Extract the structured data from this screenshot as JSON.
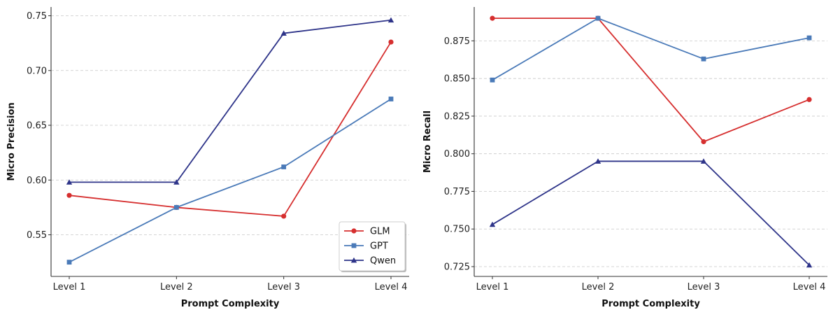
{
  "chart_data": [
    {
      "type": "line",
      "categories": [
        "Level 1",
        "Level 2",
        "Level 3",
        "Level 4"
      ],
      "xlabel": "Prompt Complexity",
      "ylabel": "Micro Precision",
      "ylim": [
        0.512,
        0.758
      ],
      "yticks": [
        0.55,
        0.6,
        0.65,
        0.7,
        0.75
      ],
      "ytick_labels": [
        "0.55",
        "0.60",
        "0.65",
        "0.70",
        "0.75"
      ],
      "grid": "horizontal dashed",
      "legend": "bottom-right",
      "series": [
        {
          "name": "GLM",
          "color": "#d62f2f",
          "marker": "circle",
          "values": [
            0.586,
            0.575,
            0.567,
            0.726
          ]
        },
        {
          "name": "GPT",
          "color": "#4a7ab8",
          "marker": "square",
          "values": [
            0.525,
            0.575,
            0.612,
            0.674
          ]
        },
        {
          "name": "Qwen",
          "color": "#2e3489",
          "marker": "triangle",
          "values": [
            0.598,
            0.598,
            0.734,
            0.746
          ]
        }
      ]
    },
    {
      "type": "line",
      "categories": [
        "Level 1",
        "Level 2",
        "Level 3",
        "Level 4"
      ],
      "xlabel": "Prompt Complexity",
      "ylabel": "Micro Recall",
      "ylim": [
        0.7185,
        0.8975
      ],
      "yticks": [
        0.725,
        0.75,
        0.775,
        0.8,
        0.825,
        0.85,
        0.875
      ],
      "ytick_labels": [
        "0.725",
        "0.750",
        "0.775",
        "0.800",
        "0.825",
        "0.850",
        "0.875"
      ],
      "grid": "horizontal dashed",
      "legend": "none",
      "series": [
        {
          "name": "GLM",
          "color": "#d62f2f",
          "marker": "circle",
          "values": [
            0.89,
            0.89,
            0.808,
            0.836
          ]
        },
        {
          "name": "GPT",
          "color": "#4a7ab8",
          "marker": "square",
          "values": [
            0.849,
            0.89,
            0.863,
            0.877
          ]
        },
        {
          "name": "Qwen",
          "color": "#2e3489",
          "marker": "triangle",
          "values": [
            0.753,
            0.795,
            0.795,
            0.726
          ]
        }
      ]
    }
  ]
}
